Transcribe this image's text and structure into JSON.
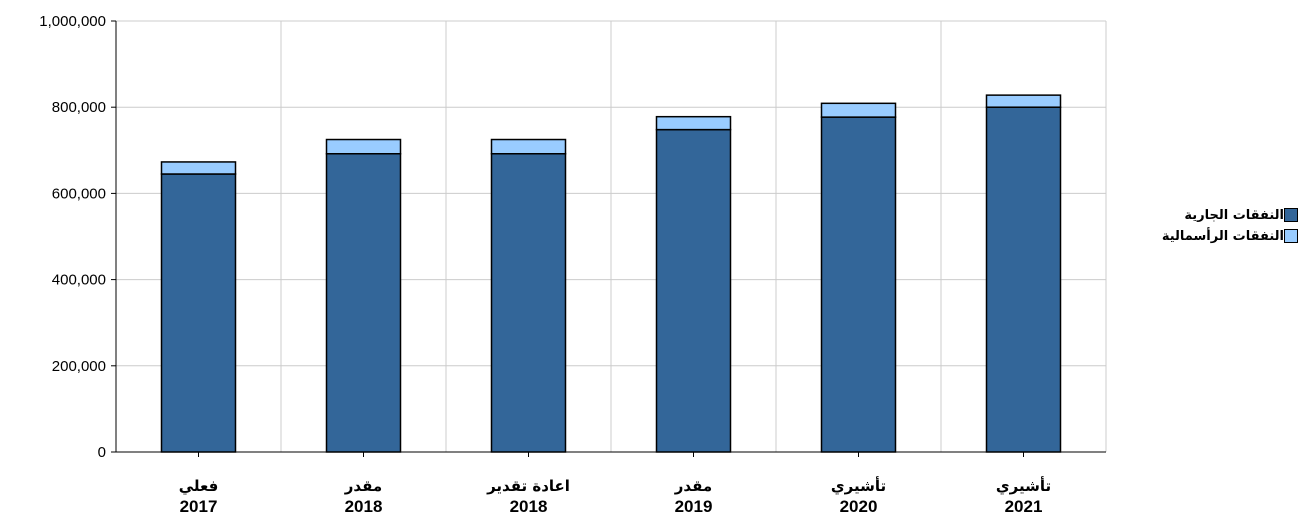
{
  "chart_data": {
    "type": "bar",
    "stacked": true,
    "title": "",
    "xlabel": "",
    "ylabel": "",
    "ylim": [
      0,
      1000000
    ],
    "y_ticks": [
      "0",
      "200,000",
      "400,000",
      "600,000",
      "800,000",
      "1,000,000"
    ],
    "y_tick_values": [
      0,
      200000,
      400000,
      600000,
      800000,
      1000000
    ],
    "grid": true,
    "legend_position": "right",
    "categories": [
      {
        "label": "فعلي",
        "year": "2017"
      },
      {
        "label": "مقدر",
        "year": "2018"
      },
      {
        "label": "اعادة تقدير",
        "year": "2018"
      },
      {
        "label": "مقدر",
        "year": "2019"
      },
      {
        "label": "تأشيري",
        "year": "2020"
      },
      {
        "label": "تأشيري",
        "year": "2021"
      }
    ],
    "series": [
      {
        "name": "النفقات الجارية",
        "color": "#336699",
        "values": [
          645000,
          692000,
          692000,
          748000,
          777000,
          800000
        ]
      },
      {
        "name": "النفقات الرأسمالية",
        "color": "#99ccff",
        "values": [
          28000,
          33000,
          33000,
          30000,
          32000,
          28000
        ]
      }
    ]
  }
}
